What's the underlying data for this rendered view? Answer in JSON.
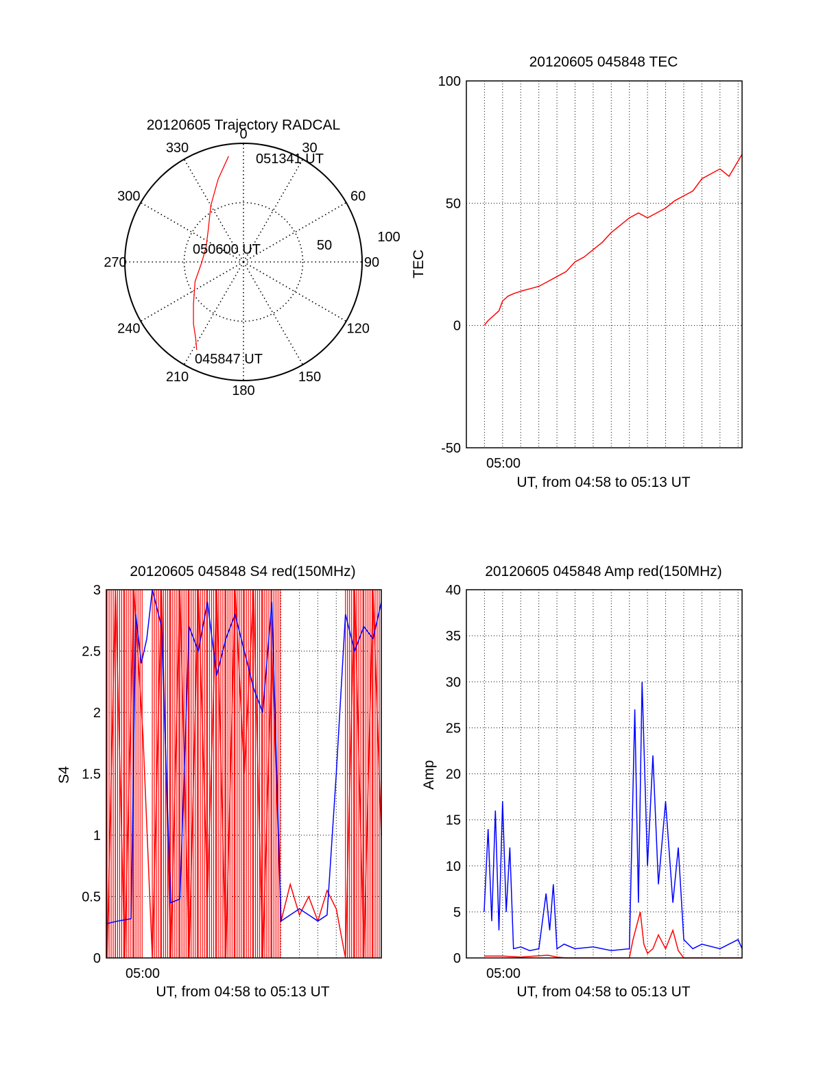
{
  "colors": {
    "red": "#ff0000",
    "blue": "#0000ff",
    "axis": "#000000"
  },
  "chart_data": [
    {
      "type": "polar",
      "title": "20120605 Trajectory RADCAL",
      "angle_labels": [
        "0",
        "30",
        "60",
        "90",
        "120",
        "150",
        "180",
        "210",
        "240",
        "270",
        "300",
        "330"
      ],
      "radial_labels": [
        "50",
        "100"
      ],
      "rlim": [
        0,
        100
      ],
      "trajectory": [
        [
          208,
          84
        ],
        [
          212,
          76
        ],
        [
          219,
          67
        ],
        [
          230,
          55
        ],
        [
          248,
          44
        ],
        [
          270,
          35
        ],
        [
          292,
          34
        ],
        [
          312,
          40
        ],
        [
          330,
          55
        ],
        [
          343,
          73
        ],
        [
          352,
          90
        ]
      ],
      "annotations": {
        "start": "045847 UT",
        "middle": "050600 UT",
        "end": "051341 UT"
      },
      "grid": true
    },
    {
      "type": "line",
      "title": "20120605 045848 TEC",
      "ylabel": "TEC",
      "xlabel": "UT, from 04:58 to 05:13 UT",
      "xtick_label": "05:00",
      "xlim": [
        -2,
        13.22
      ],
      "ylim": [
        -50,
        100
      ],
      "yticks": [
        "-50",
        "0",
        "50",
        "100"
      ],
      "grid": true,
      "series": [
        {
          "color": "red",
          "x": [
            -1.02,
            -0.8,
            -0.5,
            -0.2,
            0,
            0.3,
            0.6,
            1,
            1.5,
            2,
            2.5,
            3,
            3.5,
            4,
            4.5,
            5,
            5.5,
            6,
            6.5,
            7,
            7.5,
            8,
            8.5,
            9,
            9.5,
            10,
            10.5,
            11,
            11.5,
            12,
            12.5,
            13.22
          ],
          "y": [
            0,
            2,
            4,
            6,
            10,
            12,
            13,
            14,
            15,
            16,
            18,
            20,
            22,
            26,
            28,
            31,
            34,
            38,
            41,
            44,
            46,
            44,
            46,
            48,
            51,
            53,
            55,
            60,
            62,
            64,
            61,
            70
          ]
        }
      ]
    },
    {
      "type": "line",
      "title": "20120605 045848 S4 red(150MHz)",
      "ylabel": "S4",
      "xlabel": "UT, from 04:58 to 05:13 UT",
      "xtick_label": "05:00",
      "xlim": [
        -1.5,
        13.45
      ],
      "ylim": [
        0,
        3
      ],
      "yticks": [
        "0",
        "0.5",
        "1",
        "1.5",
        "2",
        "2.5",
        "3"
      ],
      "grid": true,
      "series": [
        {
          "color": "blue",
          "x": [
            -1.46,
            -0.9,
            -0.5,
            -0.15,
            0.1,
            0.4,
            0.7,
            1,
            1.5,
            2,
            2.5,
            3,
            3.5,
            4,
            4.5,
            5,
            5.5,
            6,
            6.5,
            7,
            7.5,
            8,
            8.5,
            9,
            9.5,
            10,
            10.5,
            11,
            11.5,
            12,
            12.5,
            13,
            13.45
          ],
          "y": [
            0.28,
            0.3,
            0.31,
            0.32,
            2.8,
            2.4,
            2.6,
            3,
            2.7,
            0.45,
            0.48,
            2.7,
            2.5,
            2.9,
            2.3,
            2.6,
            2.8,
            2.5,
            2.2,
            2,
            2.9,
            0.3,
            0.35,
            0.4,
            0.35,
            0.3,
            0.35,
            1.5,
            2.8,
            2.5,
            2.7,
            2.6,
            2.9
          ]
        },
        {
          "color": "red",
          "x": [
            -1.46,
            -1,
            -0.5,
            0,
            0.5,
            1,
            1.5,
            2,
            2.5,
            3,
            3.5,
            4,
            4.5,
            5,
            5.5,
            6,
            6.5,
            7,
            7.5,
            8,
            8.5,
            9,
            9.5,
            10,
            10.5,
            11,
            11.5,
            12,
            12.5,
            13,
            13.45
          ],
          "y": [
            0,
            3,
            0,
            3,
            1.8,
            0,
            3,
            0,
            3,
            0,
            3,
            0.5,
            3,
            0,
            3,
            1.5,
            3,
            0,
            2.5,
            0.3,
            0.6,
            0.35,
            0.5,
            0.3,
            0.55,
            0.4,
            0,
            3,
            0,
            3,
            1
          ]
        }
      ]
    },
    {
      "type": "line",
      "title": "20120605 045848 Amp red(150MHz)",
      "ylabel": "Amp",
      "xlabel": "UT, from 04:58 to 05:13 UT",
      "xtick_label": "05:00",
      "xlim": [
        -2,
        13.22
      ],
      "ylim": [
        0,
        40
      ],
      "yticks": [
        "0",
        "5",
        "10",
        "15",
        "20",
        "25",
        "30",
        "35",
        "40"
      ],
      "grid": true,
      "series": [
        {
          "color": "blue",
          "x": [
            -1.02,
            -0.8,
            -0.6,
            -0.4,
            -0.2,
            0,
            0.2,
            0.4,
            0.6,
            1,
            1.5,
            2,
            2.4,
            2.6,
            2.8,
            3,
            3.4,
            4,
            5,
            6,
            7,
            7.3,
            7.5,
            7.7,
            8,
            8.3,
            8.6,
            9,
            9.4,
            9.7,
            10,
            10.5,
            11,
            12,
            13,
            13.22
          ],
          "y": [
            5,
            14,
            4,
            16,
            3,
            17,
            5,
            12,
            1,
            1.2,
            0.8,
            1,
            7,
            3,
            8,
            1,
            1.5,
            1,
            1.2,
            0.8,
            1,
            27,
            6,
            30,
            10,
            22,
            8,
            17,
            6,
            12,
            2,
            1,
            1.5,
            1,
            2,
            1
          ]
        },
        {
          "color": "red",
          "x": [
            -1.02,
            0,
            1,
            2.5,
            3,
            3.5,
            7,
            7.2,
            7.4,
            7.6,
            7.8,
            8,
            8.3,
            8.6,
            9,
            9.4,
            9.7,
            10,
            13.22
          ],
          "y": [
            0.2,
            0.2,
            0.1,
            0.3,
            0.1,
            0,
            0,
            2,
            3.5,
            5,
            1.5,
            0.5,
            1,
            2.5,
            1,
            3,
            0.8,
            0,
            0
          ]
        }
      ]
    }
  ]
}
